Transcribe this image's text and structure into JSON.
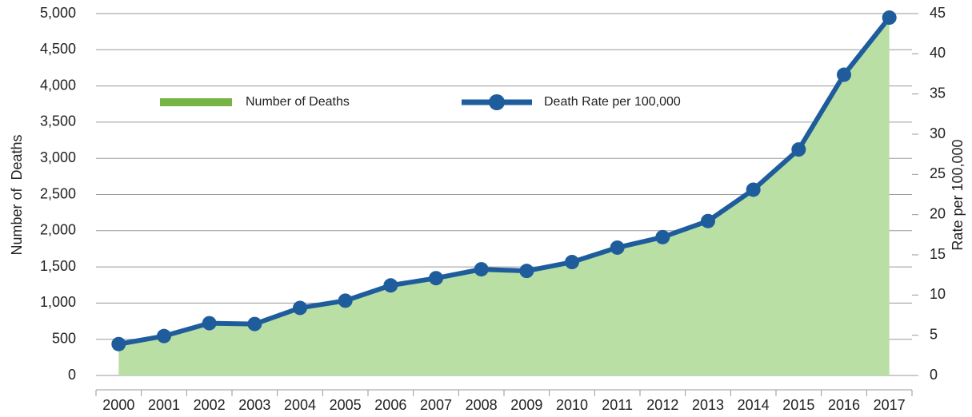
{
  "chart_data": {
    "type": "combo",
    "y_label": "Number of  Deaths",
    "y2_label": "Rate per 100,000",
    "categories": [
      "2000",
      "2001",
      "2002",
      "2003",
      "2004",
      "2005",
      "2006",
      "2007",
      "2008",
      "2009",
      "2010",
      "2011",
      "2012",
      "2013",
      "2014",
      "2015",
      "2016",
      "2017"
    ],
    "series": [
      {
        "name": "Number of Deaths",
        "type": "area",
        "color": "#b9dfa4",
        "legend_color": "#76b445",
        "values": [
          430,
          540,
          717,
          706,
          938,
          1038,
          1247,
          1347,
          1468,
          1446,
          1567,
          1766,
          1909,
          2130,
          2572,
          3124,
          4150,
          4945
        ]
      },
      {
        "name": "Death Rate per 100,000",
        "type": "line",
        "axis": "y2",
        "color": "#1f5c9c",
        "values": [
          3.9,
          4.9,
          6.5,
          6.4,
          8.4,
          9.3,
          11.2,
          12.1,
          13.2,
          13.0,
          14.1,
          15.9,
          17.2,
          19.2,
          23.1,
          28.1,
          37.4,
          44.5
        ]
      }
    ],
    "ylim": [
      0,
      5000
    ],
    "yticks": [
      0,
      500,
      {
        "value": 1000,
        "label": "1,000"
      },
      {
        "value": 1500,
        "label": "1,500"
      },
      {
        "value": 2000,
        "label": "2,000"
      },
      {
        "value": 2500,
        "label": "2,500"
      },
      {
        "value": 3000,
        "label": "3,000"
      },
      {
        "value": 3500,
        "label": "3,500"
      },
      {
        "value": 4000,
        "label": "4,000"
      },
      {
        "value": 4500,
        "label": "4,500"
      },
      {
        "value": 5000,
        "label": "5,000"
      }
    ],
    "y2lim": [
      0,
      45
    ],
    "y2ticks": [
      0,
      5,
      10,
      15,
      20,
      25,
      30,
      35,
      40,
      45
    ],
    "grid": true
  }
}
